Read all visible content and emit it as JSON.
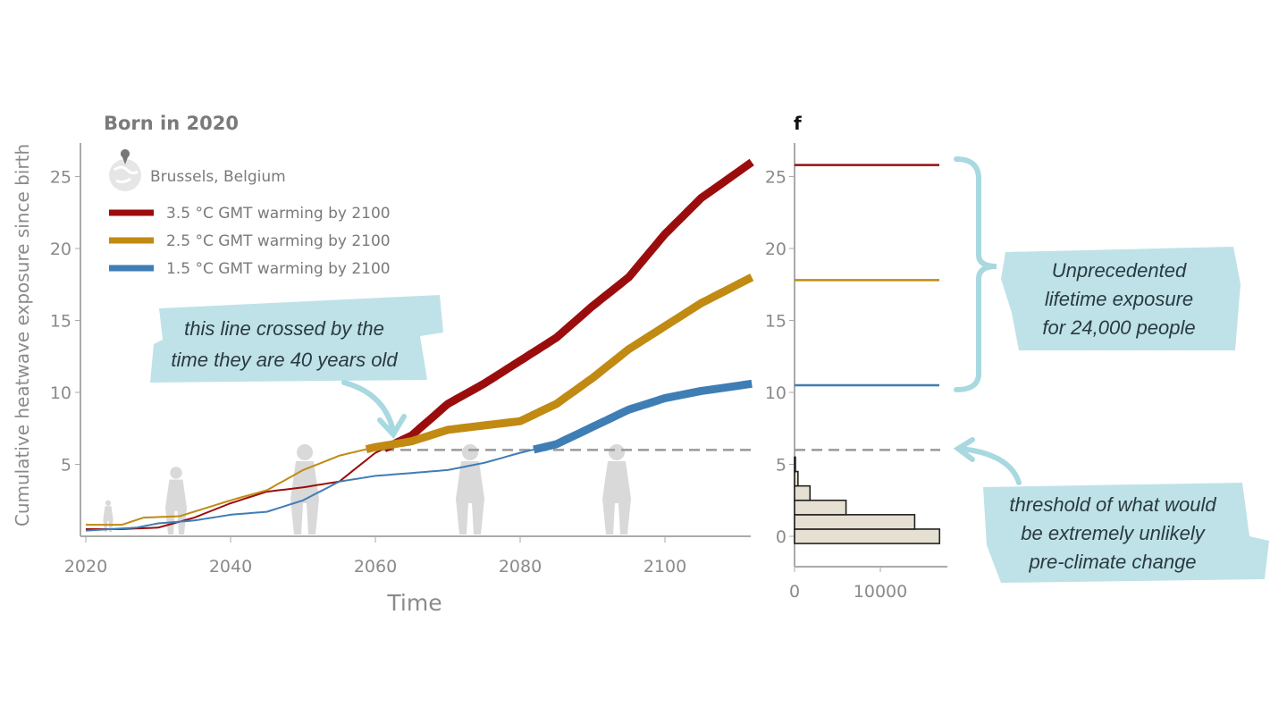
{
  "chart_data": [
    {
      "type": "line",
      "title": "Born in 2020",
      "location": "Brussels, Belgium",
      "xlabel": "Time",
      "ylabel": "Cumulative heatwave exposure since birth",
      "xlim": [
        2020,
        2112
      ],
      "ylim": [
        0,
        27
      ],
      "xticks": [
        "2020",
        "2040",
        "2060",
        "2080",
        "2100"
      ],
      "yticks": [
        "5",
        "10",
        "15",
        "20",
        "25"
      ],
      "grid": false,
      "legend_position": "top-left",
      "threshold": 6,
      "series": [
        {
          "name": "3.5 °C GMT warming by 2100",
          "color": "#9b0d0d",
          "x": [
            2020,
            2025,
            2030,
            2035,
            2040,
            2045,
            2050,
            2055,
            2060,
            2065,
            2070,
            2075,
            2080,
            2085,
            2090,
            2095,
            2100,
            2105,
            2112
          ],
          "y": [
            0.5,
            0.5,
            0.6,
            1.3,
            2.3,
            3.1,
            3.4,
            3.8,
            5.8,
            7.0,
            9.2,
            10.6,
            12.2,
            13.8,
            16.0,
            18.0,
            21.0,
            23.5,
            26.0
          ]
        },
        {
          "name": "2.5 °C GMT warming by 2100",
          "color": "#c18a12",
          "x": [
            2020,
            2025,
            2028,
            2033,
            2040,
            2045,
            2050,
            2055,
            2060,
            2065,
            2070,
            2075,
            2080,
            2085,
            2090,
            2095,
            2100,
            2105,
            2112
          ],
          "y": [
            0.8,
            0.8,
            1.3,
            1.4,
            2.5,
            3.2,
            4.6,
            5.6,
            6.2,
            6.6,
            7.4,
            7.7,
            8.0,
            9.2,
            11.0,
            13.0,
            14.6,
            16.2,
            18.0
          ]
        },
        {
          "name": "1.5 °C GMT warming by 2100",
          "color": "#3f7db5",
          "x": [
            2020,
            2027,
            2030,
            2035,
            2040,
            2045,
            2050,
            2055,
            2060,
            2065,
            2070,
            2075,
            2080,
            2085,
            2090,
            2095,
            2100,
            2105,
            2112
          ],
          "y": [
            0.4,
            0.6,
            0.9,
            1.1,
            1.5,
            1.7,
            2.5,
            3.8,
            4.2,
            4.4,
            4.6,
            5.1,
            5.8,
            6.4,
            7.6,
            8.8,
            9.6,
            10.1,
            10.6
          ]
        }
      ],
      "annotations": [
        "this line crossed by the time they are 40 years old"
      ]
    },
    {
      "type": "bar",
      "orientation": "horizontal",
      "panel_label": "f",
      "categories": [
        0,
        1,
        2,
        3,
        4,
        5
      ],
      "values": [
        16900,
        14000,
        6000,
        1800,
        400,
        100
      ],
      "xticks": [
        "0",
        "10000"
      ],
      "yticks": [
        "0",
        "5",
        "10",
        "15",
        "20",
        "25"
      ],
      "ylim": [
        -2,
        27
      ],
      "xlim": [
        0,
        18000
      ],
      "bar_color": "#e6e0d2",
      "threshold": 6,
      "levels": [
        {
          "value": 25.8,
          "color": "#9b0d0d"
        },
        {
          "value": 17.8,
          "color": "#c18a12"
        },
        {
          "value": 10.5,
          "color": "#3f7db5"
        }
      ],
      "annotations": [
        "Unprecedented lifetime exposure for 24,000 people",
        "threshold of what would be extremely unlikely pre-climate change"
      ]
    }
  ],
  "notes": {
    "crossed_lines": [
      "this line crossed by the",
      "time they are 40 years old"
    ],
    "unprecedented_lines": [
      "Unprecedented",
      "lifetime exposure",
      "for 24,000 people"
    ],
    "threshold_lines": [
      "threshold of what would",
      "be extremely unlikely",
      "pre-climate change"
    ]
  }
}
